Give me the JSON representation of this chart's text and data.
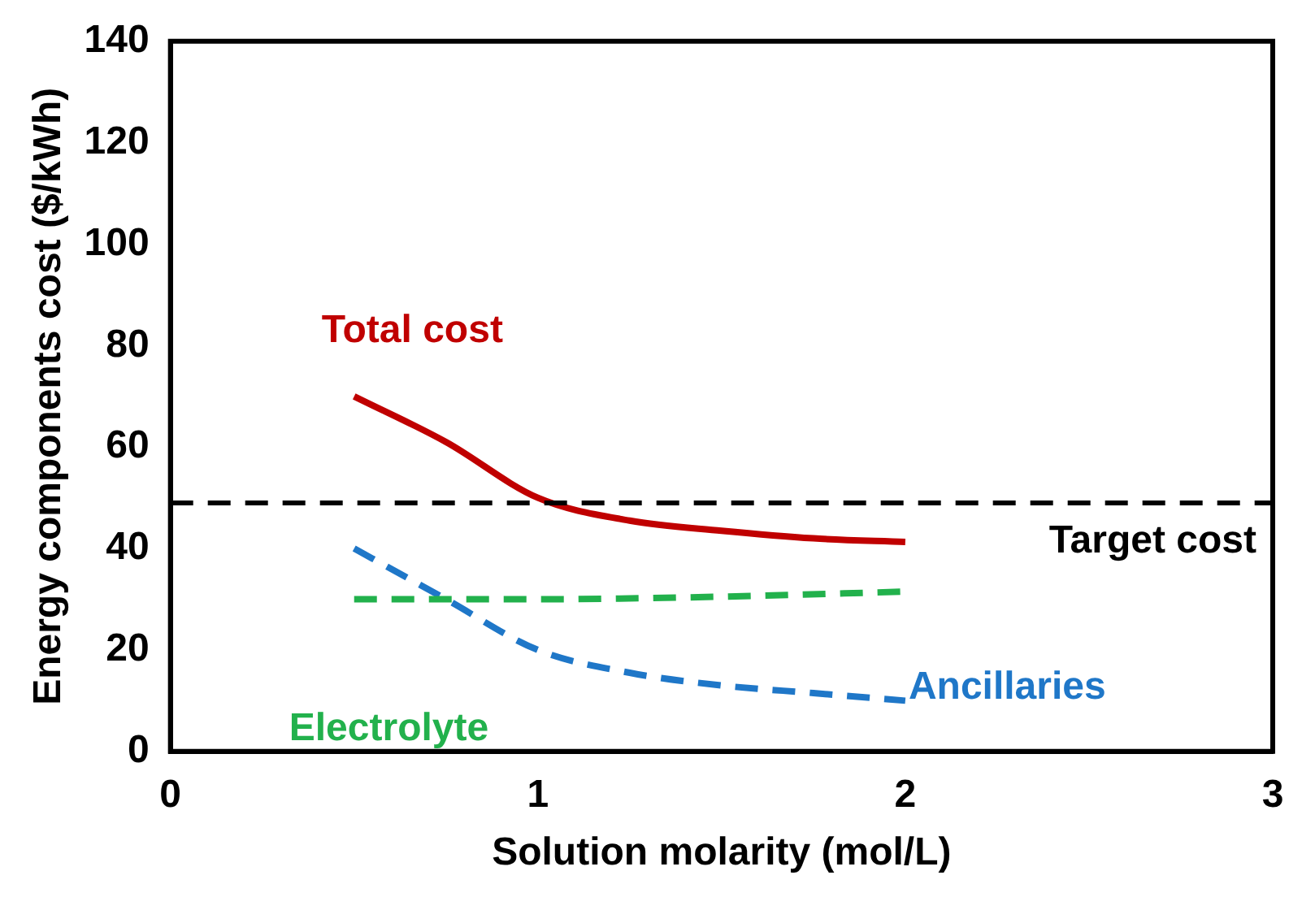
{
  "chart_data": {
    "type": "line",
    "xlabel": "Solution molarity (mol/L)",
    "ylabel": "Energy components cost ($/kWh)",
    "xlim": [
      0,
      3
    ],
    "xticks": [
      0,
      1,
      2,
      3
    ],
    "ylim": [
      0,
      140
    ],
    "yticks": [
      0,
      20,
      40,
      60,
      80,
      100,
      120,
      140
    ],
    "grid": false,
    "legend": false,
    "marker": "none",
    "series": [
      {
        "name": "Total cost",
        "color": "#c00000",
        "line_style": "solid",
        "x": [
          0.5,
          0.75,
          1,
          1.25,
          1.5,
          1.75,
          2
        ],
        "values": [
          70,
          61,
          50,
          45.5,
          43.5,
          42,
          41.3
        ]
      },
      {
        "name": "Electrolyte",
        "color": "#22b14c",
        "line_style": "dashed",
        "x": [
          0.5,
          1,
          1.5,
          2
        ],
        "values": [
          30,
          30,
          30.5,
          31.5
        ]
      },
      {
        "name": "Ancillaries",
        "color": "#1f77c8",
        "line_style": "dashed",
        "x": [
          0.5,
          0.75,
          1,
          1.25,
          1.5,
          1.75,
          2
        ],
        "values": [
          40,
          30,
          20,
          15.5,
          13,
          11.5,
          10
        ]
      }
    ],
    "ref_lines": [
      {
        "axis": "y",
        "value": 49,
        "label": "Target cost",
        "color": "#000000",
        "line_style": "dashed"
      }
    ]
  }
}
